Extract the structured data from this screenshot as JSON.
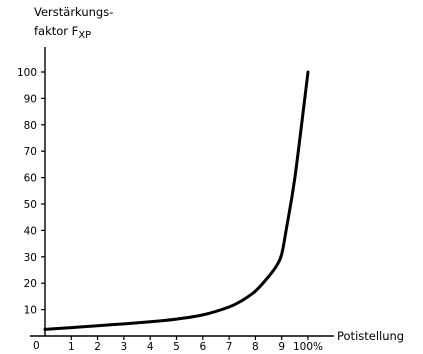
{
  "chart_data": {
    "type": "line",
    "ylabel_line1": "Verstärkungs-",
    "ylabel_line2": "faktor F",
    "ylabel_sub": "XP",
    "xlabel": "Potistellung",
    "x_origin_label": "0",
    "x_ticks": [
      "1",
      "2",
      "3",
      "4",
      "5",
      "6",
      "7",
      "8",
      "9",
      "100%"
    ],
    "y_ticks": [
      "10",
      "20",
      "30",
      "40",
      "50",
      "60",
      "70",
      "80",
      "90",
      "100"
    ],
    "xlim": [
      0,
      10
    ],
    "ylim": [
      0,
      100
    ],
    "grid": false,
    "series": [
      {
        "x": [
          0,
          1,
          2,
          3,
          4,
          5,
          6,
          7,
          7.5,
          8,
          8.5,
          8.8,
          9,
          9.2,
          9.5,
          10
        ],
        "y": [
          2.5,
          3.2,
          3.9,
          4.6,
          5.4,
          6.4,
          8,
          11,
          13.5,
          17,
          22.5,
          26.5,
          31,
          42,
          60,
          100
        ]
      }
    ]
  },
  "colors": {
    "axis": "#000000",
    "curve": "#000000"
  }
}
